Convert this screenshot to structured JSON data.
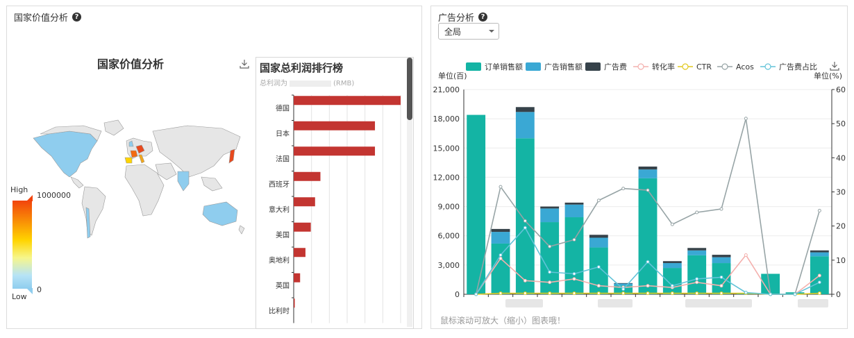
{
  "left_panel": {
    "title": "国家价值分析",
    "map_title": "国家价值分析",
    "legend": {
      "high_label": "High",
      "low_label": "Low",
      "max_value": "1000000",
      "min_value": "0"
    }
  },
  "ranking": {
    "title": "国家总利润排行榜",
    "subtitle_prefix": "总利润为",
    "subtitle_suffix": "(RMB)"
  },
  "right_panel": {
    "title": "广告分析",
    "scope_select": {
      "value": "全局"
    },
    "hint": "鼠标滚动可放大（缩小）图表哦！"
  },
  "chart_data": [
    {
      "type": "bar",
      "title": "国家总利润排行榜",
      "categories": [
        "德国",
        "日本",
        "法国",
        "西班牙",
        "意大利",
        "美国",
        "奥地利",
        "英国",
        "比利时"
      ],
      "values": [
        100,
        76,
        76,
        25,
        20,
        16,
        11,
        6,
        1
      ],
      "bar_color": "#c33531"
    },
    {
      "type": "bar",
      "legend": [
        "订单销售额",
        "广告销售额",
        "广告费",
        "转化率",
        "CTR",
        "Acos",
        "广告费占比"
      ],
      "ylabel_left": "单位(百)",
      "ylabel_right": "单位(%)",
      "ylim_left": [
        0,
        21000
      ],
      "ylim_right": [
        0,
        60
      ],
      "left_ticks": [
        "0",
        "3,000",
        "6,000",
        "9,000",
        "12,000",
        "15,000",
        "18,000",
        "21,000"
      ],
      "right_ticks": [
        "0",
        "10",
        "20",
        "30",
        "40",
        "50",
        "60"
      ],
      "colors": {
        "order": "#14b4a4",
        "ad_sales": "#3aa8d4",
        "ad_fee": "#36424a",
        "cvr": "#f4b0ad",
        "ctr": "#e1c81d",
        "acos": "#97a4a6",
        "ad_ratio": "#62c3d8"
      },
      "series": [
        {
          "name": "订单销售额",
          "kind": "stack",
          "values": [
            18400,
            5200,
            16000,
            7400,
            7900,
            4800,
            900,
            11900,
            2700,
            4000,
            3200,
            100,
            2100,
            200,
            3900
          ]
        },
        {
          "name": "广告销售额",
          "kind": "stack",
          "values": [
            0,
            1200,
            2700,
            1400,
            1300,
            1000,
            200,
            900,
            500,
            500,
            600,
            0,
            0,
            0,
            400
          ]
        },
        {
          "name": "广告费",
          "kind": "stack",
          "values": [
            0,
            300,
            500,
            200,
            200,
            300,
            50,
            300,
            200,
            250,
            250,
            0,
            0,
            0,
            200
          ]
        },
        {
          "name": "转化率",
          "kind": "line",
          "values": [
            0,
            10.5,
            4,
            3.5,
            4.5,
            2.5,
            2,
            2.5,
            2,
            3.5,
            2.5,
            11.5,
            0,
            0,
            5.5
          ]
        },
        {
          "name": "CTR",
          "kind": "line",
          "values": [
            0,
            0.3,
            0.3,
            0.3,
            0.3,
            0.3,
            0.3,
            0.3,
            0.3,
            0.3,
            0.3,
            0.3,
            0,
            0,
            0.3
          ]
        },
        {
          "name": "Acos",
          "kind": "line",
          "values": [
            0,
            31.5,
            21.5,
            14,
            16,
            27.5,
            31,
            30.5,
            20.5,
            24,
            25,
            51.5,
            0,
            0,
            24.5
          ]
        },
        {
          "name": "广告费占比",
          "kind": "line",
          "values": [
            0,
            11.5,
            19.5,
            6.5,
            6,
            8,
            1.5,
            9.5,
            2.5,
            4.5,
            5,
            0.5,
            0,
            0,
            3.5
          ]
        }
      ]
    }
  ]
}
